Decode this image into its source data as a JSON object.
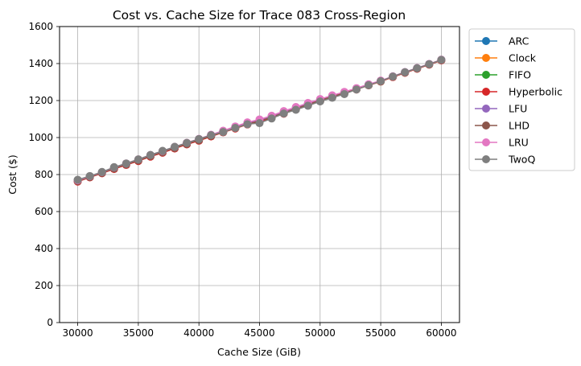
{
  "chart_data": {
    "type": "line",
    "title": "Cost vs. Cache Size for Trace 083 Cross-Region",
    "xlabel": "Cache Size (GiB)",
    "ylabel": "Cost ($)",
    "xlim": [
      28500,
      61500
    ],
    "ylim": [
      0,
      1600
    ],
    "x_ticks": [
      30000,
      35000,
      40000,
      45000,
      50000,
      55000,
      60000
    ],
    "y_ticks": [
      0,
      200,
      400,
      600,
      800,
      1000,
      1200,
      1400,
      1600
    ],
    "grid": true,
    "legend_position": "outside-right-top",
    "x": [
      30000,
      31000,
      32000,
      33000,
      34000,
      35000,
      36000,
      37000,
      38000,
      39000,
      40000,
      41000,
      42000,
      43000,
      44000,
      45000,
      46000,
      47000,
      48000,
      49000,
      50000,
      51000,
      52000,
      53000,
      54000,
      55000,
      56000,
      57000,
      58000,
      59000,
      60000
    ],
    "series": [
      {
        "name": "ARC",
        "color": "#1f77b4",
        "values": [
          770,
          790,
          812,
          838,
          858,
          880,
          905,
          925,
          948,
          970,
          990,
          1013,
          1033,
          1055,
          1077,
          1090,
          1112,
          1135,
          1158,
          1180,
          1202,
          1223,
          1243,
          1263,
          1285,
          1305,
          1330,
          1353,
          1375,
          1397,
          1420
        ]
      },
      {
        "name": "Clock",
        "color": "#ff7f0e",
        "values": [
          768,
          789,
          811,
          836,
          857,
          879,
          903,
          924,
          946,
          968,
          988,
          1011,
          1031,
          1054,
          1076,
          1089,
          1110,
          1133,
          1156,
          1178,
          1200,
          1221,
          1241,
          1262,
          1284,
          1304,
          1329,
          1352,
          1374,
          1396,
          1419
        ]
      },
      {
        "name": "FIFO",
        "color": "#2ca02c",
        "values": [
          767,
          788,
          810,
          835,
          856,
          878,
          902,
          923,
          945,
          967,
          987,
          1010,
          1030,
          1053,
          1075,
          1088,
          1109,
          1132,
          1155,
          1177,
          1199,
          1220,
          1240,
          1261,
          1283,
          1303,
          1328,
          1351,
          1373,
          1395,
          1418
        ]
      },
      {
        "name": "Hyperbolic",
        "color": "#d62728",
        "values": [
          762,
          785,
          807,
          830,
          852,
          873,
          897,
          918,
          941,
          963,
          983,
          1006,
          1028,
          1049,
          1071,
          1086,
          1106,
          1129,
          1152,
          1175,
          1197,
          1218,
          1239,
          1260,
          1282,
          1303,
          1327,
          1350,
          1372,
          1394,
          1417
        ]
      },
      {
        "name": "LFU",
        "color": "#9467bd",
        "values": [
          768,
          790,
          812,
          837,
          858,
          880,
          904,
          925,
          947,
          969,
          990,
          1012,
          1034,
          1057,
          1078,
          1095,
          1115,
          1140,
          1162,
          1184,
          1205,
          1225,
          1245,
          1265,
          1286,
          1306,
          1330,
          1353,
          1375,
          1397,
          1420
        ]
      },
      {
        "name": "LHD",
        "color": "#8c564b",
        "values": [
          765,
          787,
          809,
          833,
          855,
          876,
          900,
          921,
          944,
          966,
          986,
          1009,
          1030,
          1052,
          1074,
          1089,
          1110,
          1133,
          1156,
          1179,
          1201,
          1222,
          1242,
          1263,
          1285,
          1305,
          1329,
          1352,
          1374,
          1396,
          1419
        ]
      },
      {
        "name": "LRU",
        "color": "#e377c2",
        "values": [
          769,
          791,
          813,
          839,
          860,
          882,
          906,
          927,
          950,
          972,
          993,
          1015,
          1037,
          1060,
          1082,
          1098,
          1118,
          1143,
          1165,
          1187,
          1208,
          1228,
          1247,
          1267,
          1288,
          1308,
          1331,
          1354,
          1376,
          1398,
          1421
        ]
      },
      {
        "name": "TwoQ",
        "color": "#7f7f7f",
        "values": [
          772,
          792,
          814,
          840,
          860,
          882,
          906,
          928,
          950,
          971,
          992,
          1013,
          1030,
          1052,
          1072,
          1078,
          1103,
          1130,
          1150,
          1172,
          1195,
          1215,
          1235,
          1260,
          1283,
          1305,
          1330,
          1353,
          1375,
          1397,
          1420
        ]
      }
    ]
  }
}
